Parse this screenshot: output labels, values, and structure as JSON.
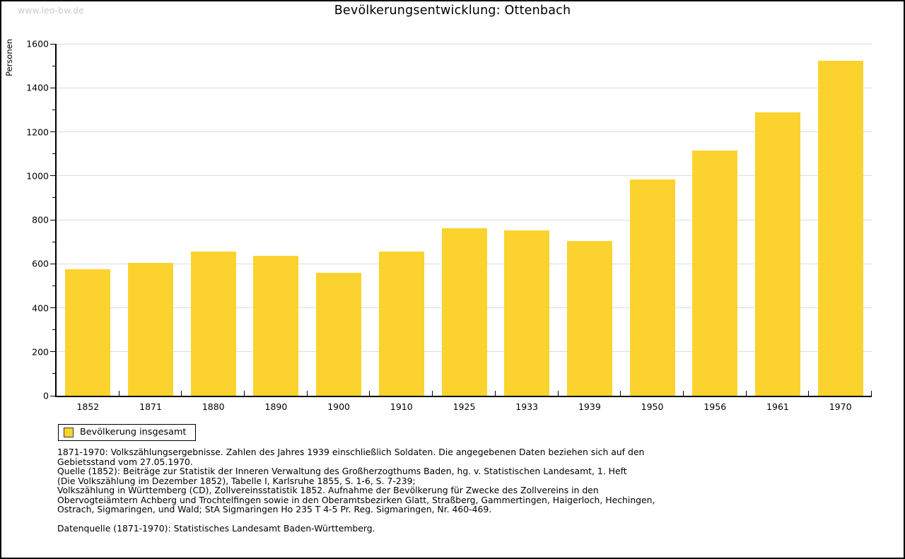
{
  "watermark": "www.leo-bw.de",
  "title": "Bevölkerungsentwicklung: Ottenbach",
  "chart_data": {
    "type": "bar",
    "title": "Bevölkerungsentwicklung: Ottenbach",
    "xlabel": "",
    "ylabel": "Personen",
    "ylim": [
      0,
      1600
    ],
    "y_major_step": 200,
    "y_minor_step": 100,
    "grid": "horizontal",
    "bar_color": "#FCD32E",
    "legend": {
      "label": "Bevölkerung insgesamt",
      "position": "bottom-left"
    },
    "categories": [
      "1852",
      "1871",
      "1880",
      "1890",
      "1900",
      "1910",
      "1925",
      "1933",
      "1939",
      "1950",
      "1956",
      "1961",
      "1970"
    ],
    "values": [
      575,
      605,
      655,
      635,
      560,
      655,
      760,
      752,
      705,
      982,
      1115,
      1288,
      1522
    ]
  },
  "footnotes": [
    "1871-1970: Volkszählungsergebnisse. Zahlen des Jahres 1939 einschließlich Soldaten. Die angegebenen Daten beziehen sich auf den",
    "Gebietsstand vom 27.05.1970.",
    "Quelle (1852): Beiträge zur Statistik der Inneren Verwaltung des Großherzogthums Baden, hg. v. Statistischen Landesamt, 1. Heft",
    "(Die Volkszählung im Dezember 1852), Tabelle I, Karlsruhe 1855, S. 1-6, S. 7-239;",
    "Volkszählung in Württemberg (CD), Zollvereinsstatistik 1852. Aufnahme der Bevölkerung für Zwecke des Zollvereins in den",
    "Obervogteiämtern Achberg und Trochtelfingen sowie in den Oberamtsbezirken Glatt, Straßberg, Gammertingen, Haigerloch, Hechingen,",
    "Ostrach, Sigmaringen, und Wald; StA Sigmaringen Ho 235 T 4-5 Pr. Reg. Sigmaringen, Nr. 460-469.",
    "",
    "Datenquelle (1871-1970): Statistisches Landesamt Baden-Württemberg."
  ],
  "colors": {
    "bar": "#FCD32E",
    "gridline": "#dcdcdc",
    "axis": "#000000",
    "watermark": "#cbcbcb",
    "background": "#ffffff"
  }
}
